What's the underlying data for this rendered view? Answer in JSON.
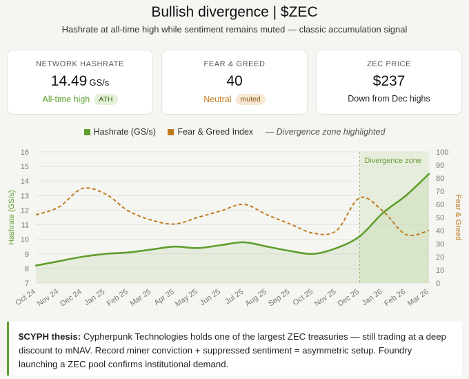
{
  "header": {
    "title": "Bullish divergence | $ZEC",
    "subtitle": "Hashrate at all-time high while sentiment remains muted — classic accumulation signal"
  },
  "cards": {
    "hashrate": {
      "label": "NETWORK HASHRATE",
      "value": "14.49",
      "unit": "GS/s",
      "note": "All-time high",
      "badge": "ATH"
    },
    "fear_greed": {
      "label": "FEAR & GREED",
      "value": "40",
      "note": "Neutral",
      "badge": "muted"
    },
    "price": {
      "label": "ZEC PRICE",
      "value": "$237",
      "note": "Down from Dec highs"
    }
  },
  "colors": {
    "hashrate": "#5e9e2c",
    "fear_greed": "#c07a1e",
    "zone": "#e6eedb",
    "ath_pill_bg": "#e6f1da",
    "muted_pill_bg": "#f6e8d4"
  },
  "chart_data": {
    "type": "line",
    "legend": [
      {
        "label": "Hashrate (GS/s)",
        "style": "square"
      },
      {
        "label": "Fear & Greed Index",
        "style": "square"
      },
      {
        "label": "— Divergence zone highlighted",
        "style": "text"
      }
    ],
    "categories": [
      "Oct 24",
      "Nov 24",
      "Dec 24",
      "Jan 25",
      "Feb 25",
      "Mar 25",
      "Apr 25",
      "May 25",
      "Jun 25",
      "Jul 25",
      "Aug 25",
      "Sep 25",
      "Oct 25",
      "Nov 25",
      "Dec 25",
      "Jan 26",
      "Feb 26",
      "Mar 26"
    ],
    "series": [
      {
        "name": "Hashrate (GS/s)",
        "axis": "left",
        "values": [
          8.2,
          8.5,
          8.8,
          9.0,
          9.1,
          9.3,
          9.5,
          9.4,
          9.6,
          9.8,
          9.5,
          9.2,
          9.0,
          9.4,
          10.2,
          11.8,
          13.0,
          14.49
        ]
      },
      {
        "name": "Fear & Greed Index",
        "axis": "right",
        "values": [
          52,
          58,
          72,
          68,
          55,
          48,
          45,
          50,
          55,
          60,
          52,
          45,
          38,
          40,
          65,
          55,
          37,
          40
        ]
      }
    ],
    "y_left": {
      "label": "Hashrate (GS/s)",
      "min": 7,
      "max": 16,
      "ticks": [
        7,
        8,
        9,
        10,
        11,
        12,
        13,
        14,
        15,
        16
      ]
    },
    "y_right": {
      "label": "Fear & Greed",
      "min": 0,
      "max": 100,
      "ticks": [
        0,
        10,
        20,
        30,
        40,
        50,
        60,
        70,
        80,
        90,
        100
      ]
    },
    "divergence_zone": {
      "label": "Divergence zone",
      "start": "Dec 25",
      "end": "Mar 26"
    },
    "grid": true
  },
  "thesis": {
    "label": "$CYPH thesis:",
    "text": " Cypherpunk Technologies holds one of the largest ZEC treasuries — still trading at a deep discount to mNAV. Record miner conviction + suppressed sentiment = asymmetric setup. Foundry launching a ZEC pool confirms institutional demand."
  }
}
